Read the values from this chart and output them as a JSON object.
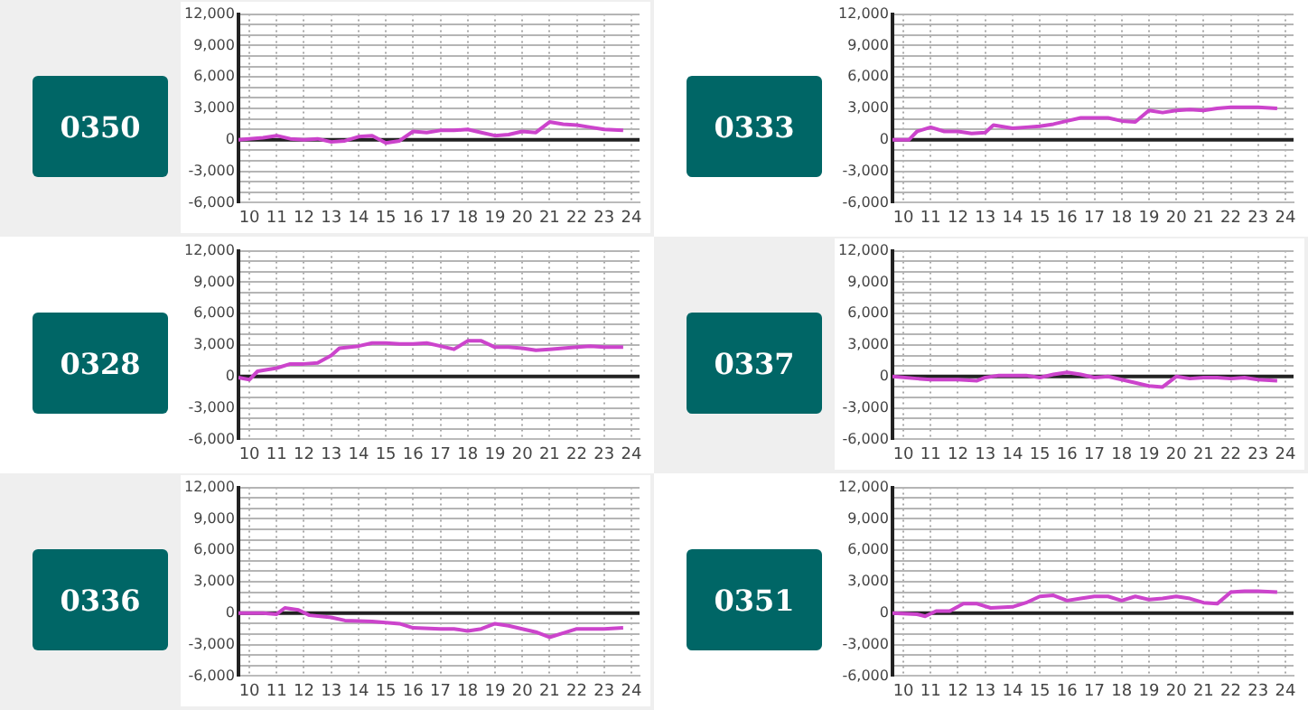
{
  "chart_data": [
    {
      "type": "line",
      "title": "0350",
      "color": "#cc44cc",
      "marker": "none",
      "line_style": "solid",
      "grid": true,
      "legend": false,
      "xlim": [
        9.6,
        24.3
      ],
      "xticks": [
        10,
        11,
        12,
        13,
        14,
        15,
        16,
        17,
        18,
        19,
        20,
        21,
        22,
        23,
        24
      ],
      "ylim": [
        -6000,
        12000
      ],
      "yticks": [
        {
          "value": -6000,
          "label": "-6,000"
        },
        {
          "value": -5000,
          "label": null
        },
        {
          "value": -4000,
          "label": null
        },
        {
          "value": -3000,
          "label": "-3,000"
        },
        {
          "value": -2000,
          "label": null
        },
        {
          "value": -1000,
          "label": null
        },
        {
          "value": 0,
          "label": "0"
        },
        {
          "value": 1000,
          "label": null
        },
        {
          "value": 2000,
          "label": null
        },
        {
          "value": 3000,
          "label": "3,000"
        },
        {
          "value": 4000,
          "label": null
        },
        {
          "value": 5000,
          "label": null
        },
        {
          "value": 6000,
          "label": "6,000"
        },
        {
          "value": 7000,
          "label": null
        },
        {
          "value": 8000,
          "label": null
        },
        {
          "value": 9000,
          "label": "9,000"
        },
        {
          "value": 10000,
          "label": null
        },
        {
          "value": 11000,
          "label": null
        },
        {
          "value": 12000,
          "label": "12,000"
        }
      ],
      "ref_lines": [
        {
          "axis": "y",
          "value": 0,
          "color": "#222222"
        }
      ],
      "x": [
        9.6,
        10,
        10.5,
        11,
        11.5,
        12,
        12.5,
        13,
        13.5,
        14,
        14.5,
        15,
        15.5,
        16,
        16.5,
        17,
        17.5,
        18,
        18.5,
        19,
        19.5,
        20,
        20.5,
        21,
        21.5,
        22,
        22.5,
        23,
        23.7
      ],
      "values": [
        0,
        100,
        200,
        400,
        100,
        0,
        100,
        -200,
        -100,
        300,
        400,
        -300,
        -100,
        800,
        700,
        900,
        900,
        1000,
        700,
        400,
        500,
        800,
        700,
        1700,
        1500,
        1400,
        1200,
        1000,
        900
      ]
    },
    {
      "type": "line",
      "title": "0333",
      "color": "#cc44cc",
      "marker": "none",
      "line_style": "solid",
      "grid": true,
      "legend": false,
      "xlim": [
        9.6,
        24.3
      ],
      "xticks": [
        10,
        11,
        12,
        13,
        14,
        15,
        16,
        17,
        18,
        19,
        20,
        21,
        22,
        23,
        24
      ],
      "ylim": [
        -6000,
        12000
      ],
      "yticks": [
        {
          "value": -6000,
          "label": "-6,000"
        },
        {
          "value": -5000,
          "label": null
        },
        {
          "value": -4000,
          "label": null
        },
        {
          "value": -3000,
          "label": "-3,000"
        },
        {
          "value": -2000,
          "label": null
        },
        {
          "value": -1000,
          "label": null
        },
        {
          "value": 0,
          "label": "0"
        },
        {
          "value": 1000,
          "label": null
        },
        {
          "value": 2000,
          "label": null
        },
        {
          "value": 3000,
          "label": "3,000"
        },
        {
          "value": 4000,
          "label": null
        },
        {
          "value": 5000,
          "label": null
        },
        {
          "value": 6000,
          "label": "6,000"
        },
        {
          "value": 7000,
          "label": null
        },
        {
          "value": 8000,
          "label": null
        },
        {
          "value": 9000,
          "label": "9,000"
        },
        {
          "value": 10000,
          "label": null
        },
        {
          "value": 11000,
          "label": null
        },
        {
          "value": 12000,
          "label": "12,000"
        }
      ],
      "ref_lines": [
        {
          "axis": "y",
          "value": 0,
          "color": "#222222"
        }
      ],
      "x": [
        9.6,
        10.2,
        10.5,
        11,
        11.5,
        12,
        12.5,
        13,
        13.3,
        14,
        14.5,
        15,
        15.5,
        16,
        16.5,
        17,
        17.5,
        18,
        18.5,
        19,
        19.5,
        20,
        20.5,
        21,
        21.5,
        22,
        22.5,
        23,
        23.7
      ],
      "values": [
        0,
        0,
        800,
        1200,
        800,
        800,
        600,
        700,
        1400,
        1100,
        1200,
        1300,
        1500,
        1800,
        2100,
        2100,
        2100,
        1800,
        1700,
        2800,
        2600,
        2800,
        2900,
        2800,
        3000,
        3100,
        3100,
        3100,
        3000
      ]
    },
    {
      "type": "line",
      "title": "0328",
      "color": "#cc44cc",
      "marker": "none",
      "line_style": "solid",
      "grid": true,
      "legend": false,
      "xlim": [
        9.6,
        24.3
      ],
      "xticks": [
        10,
        11,
        12,
        13,
        14,
        15,
        16,
        17,
        18,
        19,
        20,
        21,
        22,
        23,
        24
      ],
      "ylim": [
        -6000,
        12000
      ],
      "yticks": [
        {
          "value": -6000,
          "label": "-6,000"
        },
        {
          "value": -5000,
          "label": null
        },
        {
          "value": -4000,
          "label": null
        },
        {
          "value": -3000,
          "label": "-3,000"
        },
        {
          "value": -2000,
          "label": null
        },
        {
          "value": -1000,
          "label": null
        },
        {
          "value": 0,
          "label": "0"
        },
        {
          "value": 1000,
          "label": null
        },
        {
          "value": 2000,
          "label": null
        },
        {
          "value": 3000,
          "label": "3,000"
        },
        {
          "value": 4000,
          "label": null
        },
        {
          "value": 5000,
          "label": null
        },
        {
          "value": 6000,
          "label": "6,000"
        },
        {
          "value": 7000,
          "label": null
        },
        {
          "value": 8000,
          "label": null
        },
        {
          "value": 9000,
          "label": "9,000"
        },
        {
          "value": 10000,
          "label": null
        },
        {
          "value": 11000,
          "label": null
        },
        {
          "value": 12000,
          "label": "12,000"
        }
      ],
      "ref_lines": [
        {
          "axis": "y",
          "value": 0,
          "color": "#222222"
        }
      ],
      "x": [
        9.6,
        10,
        10.3,
        11,
        11.5,
        12,
        12.5,
        13,
        13.3,
        14,
        14.5,
        15,
        15.5,
        16,
        16.5,
        17,
        17.5,
        18,
        18.5,
        19,
        19.5,
        20,
        20.5,
        21,
        21.5,
        22,
        22.5,
        23,
        23.7
      ],
      "values": [
        -100,
        -300,
        500,
        800,
        1200,
        1200,
        1300,
        2000,
        2700,
        2900,
        3200,
        3200,
        3100,
        3100,
        3200,
        2900,
        2600,
        3400,
        3400,
        2800,
        2800,
        2700,
        2500,
        2600,
        2700,
        2800,
        2900,
        2800,
        2800
      ]
    },
    {
      "type": "line",
      "title": "0337",
      "color": "#cc44cc",
      "marker": "none",
      "line_style": "solid",
      "grid": true,
      "legend": false,
      "xlim": [
        9.6,
        24.3
      ],
      "xticks": [
        10,
        11,
        12,
        13,
        14,
        15,
        16,
        17,
        18,
        19,
        20,
        21,
        22,
        23,
        24
      ],
      "ylim": [
        -6000,
        12000
      ],
      "yticks": [
        {
          "value": -6000,
          "label": "-6,000"
        },
        {
          "value": -5000,
          "label": null
        },
        {
          "value": -4000,
          "label": null
        },
        {
          "value": -3000,
          "label": "-3,000"
        },
        {
          "value": -2000,
          "label": null
        },
        {
          "value": -1000,
          "label": null
        },
        {
          "value": 0,
          "label": "0"
        },
        {
          "value": 1000,
          "label": null
        },
        {
          "value": 2000,
          "label": null
        },
        {
          "value": 3000,
          "label": "3,000"
        },
        {
          "value": 4000,
          "label": null
        },
        {
          "value": 5000,
          "label": null
        },
        {
          "value": 6000,
          "label": "6,000"
        },
        {
          "value": 7000,
          "label": null
        },
        {
          "value": 8000,
          "label": null
        },
        {
          "value": 9000,
          "label": "9,000"
        },
        {
          "value": 10000,
          "label": null
        },
        {
          "value": 11000,
          "label": null
        },
        {
          "value": 12000,
          "label": "12,000"
        }
      ],
      "ref_lines": [
        {
          "axis": "y",
          "value": 0,
          "color": "#222222"
        }
      ],
      "x": [
        9.6,
        10.5,
        11,
        12,
        12.7,
        13,
        13.5,
        14,
        14.5,
        15,
        15.5,
        16,
        16.5,
        17,
        17.5,
        18,
        18.5,
        19,
        19.5,
        20,
        20.5,
        21,
        21.5,
        22,
        22.5,
        23,
        23.7
      ],
      "values": [
        0,
        -200,
        -300,
        -300,
        -400,
        -100,
        100,
        100,
        100,
        -100,
        200,
        400,
        200,
        -100,
        0,
        -300,
        -600,
        -900,
        -1000,
        0,
        -200,
        -100,
        -100,
        -200,
        -100,
        -300,
        -400
      ]
    },
    {
      "type": "line",
      "title": "0336",
      "color": "#cc44cc",
      "marker": "none",
      "line_style": "solid",
      "grid": true,
      "legend": false,
      "xlim": [
        9.6,
        24.3
      ],
      "xticks": [
        10,
        11,
        12,
        13,
        14,
        15,
        16,
        17,
        18,
        19,
        20,
        21,
        22,
        23,
        24
      ],
      "ylim": [
        -6000,
        12000
      ],
      "yticks": [
        {
          "value": -6000,
          "label": "-6,000"
        },
        {
          "value": -5000,
          "label": null
        },
        {
          "value": -4000,
          "label": null
        },
        {
          "value": -3000,
          "label": "-3,000"
        },
        {
          "value": -2000,
          "label": null
        },
        {
          "value": -1000,
          "label": null
        },
        {
          "value": 0,
          "label": "0"
        },
        {
          "value": 1000,
          "label": null
        },
        {
          "value": 2000,
          "label": null
        },
        {
          "value": 3000,
          "label": "3,000"
        },
        {
          "value": 4000,
          "label": null
        },
        {
          "value": 5000,
          "label": null
        },
        {
          "value": 6000,
          "label": "6,000"
        },
        {
          "value": 7000,
          "label": null
        },
        {
          "value": 8000,
          "label": null
        },
        {
          "value": 9000,
          "label": "9,000"
        },
        {
          "value": 10000,
          "label": null
        },
        {
          "value": 11000,
          "label": null
        },
        {
          "value": 12000,
          "label": "12,000"
        }
      ],
      "ref_lines": [
        {
          "axis": "y",
          "value": 0,
          "color": "#222222"
        }
      ],
      "x": [
        9.6,
        10.5,
        11,
        11.3,
        11.8,
        12.2,
        13,
        13.5,
        14.5,
        15.5,
        16,
        17,
        17.5,
        18,
        18.5,
        19,
        19.5,
        20,
        20.5,
        21,
        21.5,
        22,
        23,
        23.7
      ],
      "values": [
        0,
        0,
        -100,
        500,
        300,
        -200,
        -400,
        -700,
        -800,
        -1000,
        -1400,
        -1500,
        -1500,
        -1700,
        -1500,
        -1000,
        -1200,
        -1500,
        -1800,
        -2300,
        -1900,
        -1500,
        -1500,
        -1400
      ]
    },
    {
      "type": "line",
      "title": "0351",
      "color": "#cc44cc",
      "marker": "none",
      "line_style": "solid",
      "grid": true,
      "legend": false,
      "xlim": [
        9.6,
        24.3
      ],
      "xticks": [
        10,
        11,
        12,
        13,
        14,
        15,
        16,
        17,
        18,
        19,
        20,
        21,
        22,
        23,
        24
      ],
      "ylim": [
        -6000,
        12000
      ],
      "yticks": [
        {
          "value": -6000,
          "label": "-6,000"
        },
        {
          "value": -5000,
          "label": null
        },
        {
          "value": -4000,
          "label": null
        },
        {
          "value": -3000,
          "label": "-3,000"
        },
        {
          "value": -2000,
          "label": null
        },
        {
          "value": -1000,
          "label": null
        },
        {
          "value": 0,
          "label": "0"
        },
        {
          "value": 1000,
          "label": null
        },
        {
          "value": 2000,
          "label": null
        },
        {
          "value": 3000,
          "label": "3,000"
        },
        {
          "value": 4000,
          "label": null
        },
        {
          "value": 5000,
          "label": null
        },
        {
          "value": 6000,
          "label": "6,000"
        },
        {
          "value": 7000,
          "label": null
        },
        {
          "value": 8000,
          "label": null
        },
        {
          "value": 9000,
          "label": "9,000"
        },
        {
          "value": 10000,
          "label": null
        },
        {
          "value": 11000,
          "label": null
        },
        {
          "value": 12000,
          "label": "12,000"
        }
      ],
      "ref_lines": [
        {
          "axis": "y",
          "value": 0,
          "color": "#222222"
        }
      ],
      "x": [
        9.6,
        10.5,
        10.8,
        11.2,
        11.7,
        12.2,
        12.7,
        13.2,
        14,
        14.5,
        15,
        15.5,
        16,
        16.5,
        17,
        17.5,
        18,
        18.5,
        19,
        19.5,
        20,
        20.5,
        21,
        21.5,
        22,
        22.5,
        23,
        23.7
      ],
      "values": [
        0,
        -100,
        -300,
        200,
        200,
        900,
        900,
        500,
        600,
        1000,
        1600,
        1700,
        1200,
        1400,
        1600,
        1600,
        1200,
        1600,
        1300,
        1400,
        1600,
        1400,
        1000,
        900,
        2000,
        2100,
        2100,
        2000
      ]
    }
  ]
}
